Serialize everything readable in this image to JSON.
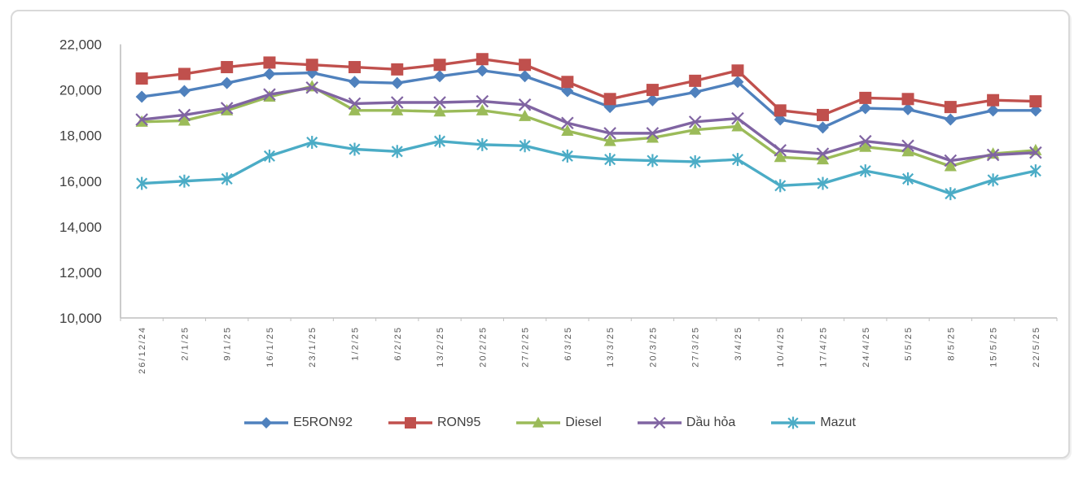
{
  "chart_data": {
    "type": "line",
    "title": "",
    "xlabel": "",
    "ylabel": "",
    "ylim": [
      10000,
      22000
    ],
    "ytick_step": 2000,
    "yticks": [
      "10,000",
      "12,000",
      "14,000",
      "16,000",
      "18,000",
      "20,000",
      "22,000"
    ],
    "grid": false,
    "legend_position": "bottom",
    "categories": [
      "26/12/24",
      "2/1/25",
      "9/1/25",
      "16/1/25",
      "23/1/25",
      "1/2/25",
      "6/2/25",
      "13/2/25",
      "20/2/25",
      "27/2/25",
      "6/3/25",
      "13/3/25",
      "20/3/25",
      "27/3/25",
      "3/4/25",
      "10/4/25",
      "17/4/25",
      "24/4/25",
      "5/5/25",
      "8/5/25",
      "15/5/25",
      "22/5/25"
    ],
    "series": [
      {
        "name": "E5RON92",
        "color": "#4F81BD",
        "marker": "diamond",
        "values": [
          19700,
          19950,
          20300,
          20700,
          20750,
          20350,
          20300,
          20600,
          20850,
          20600,
          19950,
          19250,
          19550,
          19900,
          20350,
          18700,
          18350,
          19200,
          19150,
          18700,
          19100,
          19100
        ]
      },
      {
        "name": "RON95",
        "color": "#C0504D",
        "marker": "square",
        "values": [
          20500,
          20700,
          21000,
          21200,
          21100,
          21000,
          20900,
          21100,
          21350,
          21100,
          20350,
          19600,
          20000,
          20400,
          20850,
          19100,
          18900,
          19650,
          19600,
          19250,
          19550,
          19500
        ]
      },
      {
        "name": "Diesel",
        "color": "#9BBB59",
        "marker": "triangle",
        "values": [
          18600,
          18650,
          19100,
          19700,
          20150,
          19100,
          19100,
          19050,
          19100,
          18850,
          18200,
          17750,
          17900,
          18250,
          18400,
          17050,
          16950,
          17500,
          17300,
          16650,
          17200,
          17350
        ]
      },
      {
        "name": "Dầu hỏa",
        "color": "#8064A2",
        "marker": "x",
        "values": [
          18700,
          18900,
          19200,
          19800,
          20100,
          19400,
          19450,
          19450,
          19500,
          19350,
          18550,
          18100,
          18100,
          18600,
          18750,
          17350,
          17200,
          17750,
          17550,
          16900,
          17150,
          17250
        ]
      },
      {
        "name": "Mazut",
        "color": "#4BACC6",
        "marker": "asterisk",
        "values": [
          15900,
          16000,
          16100,
          17100,
          17700,
          17400,
          17300,
          17750,
          17600,
          17550,
          17100,
          16950,
          16900,
          16850,
          16950,
          15800,
          15900,
          16450,
          16100,
          15450,
          16050,
          16450
        ]
      }
    ]
  },
  "style": {
    "axis_line_color": "#BFBFBF",
    "card_border_color": "#D9D9D9",
    "y_label_color": "#404040",
    "x_label_color": "#595959",
    "background": "#FFFFFF"
  }
}
